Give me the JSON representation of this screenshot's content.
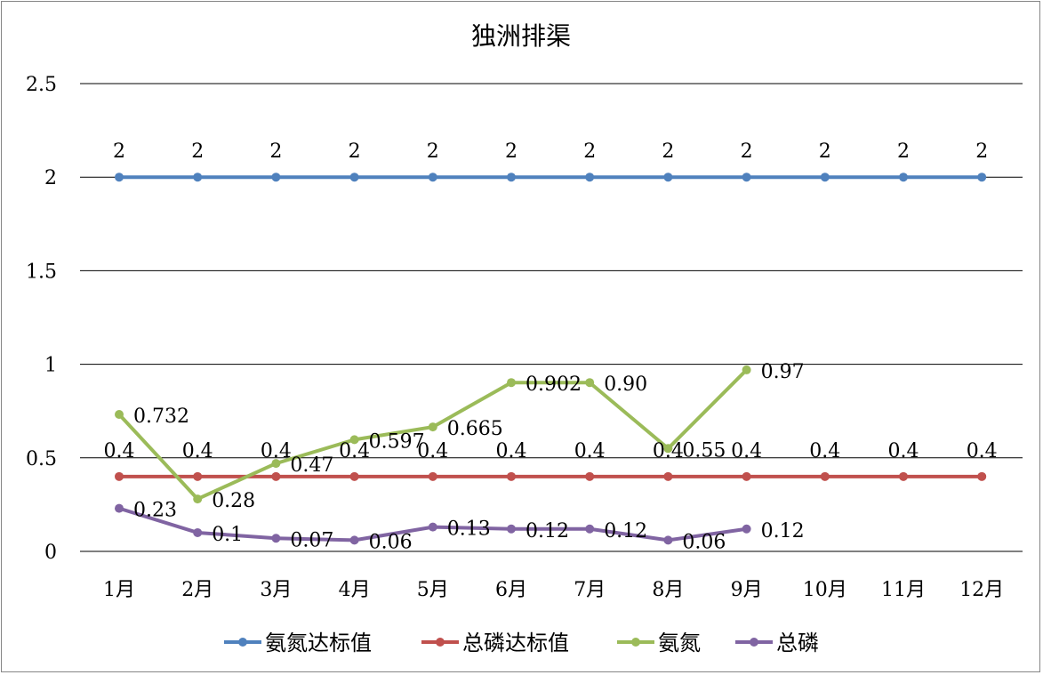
{
  "chart_data": {
    "type": "line",
    "title": "独洲排渠",
    "xlabel": "",
    "ylabel": "",
    "categories": [
      "1月",
      "2月",
      "3月",
      "4月",
      "5月",
      "6月",
      "7月",
      "8月",
      "9月",
      "10月",
      "11月",
      "12月"
    ],
    "ylim": [
      0,
      2.5
    ],
    "yticks": [
      0,
      0.5,
      1,
      1.5,
      2,
      2.5
    ],
    "ytick_labels": [
      "0",
      "0.5",
      "1",
      "1.5",
      "2",
      "2.5"
    ],
    "grid": true,
    "legend_position": "bottom",
    "series": [
      {
        "name": "氨氮达标值",
        "color": "#4F81BD",
        "values": [
          2,
          2,
          2,
          2,
          2,
          2,
          2,
          2,
          2,
          2,
          2,
          2
        ],
        "labels": [
          "2",
          "2",
          "2",
          "2",
          "2",
          "2",
          "2",
          "2",
          "2",
          "2",
          "2",
          "2"
        ],
        "label_position": "above"
      },
      {
        "name": "总磷达标值",
        "color": "#C0504D",
        "values": [
          0.4,
          0.4,
          0.4,
          0.4,
          0.4,
          0.4,
          0.4,
          0.4,
          0.4,
          0.4,
          0.4,
          0.4
        ],
        "labels": [
          "0.4",
          "0.4",
          "0.4",
          "0.4",
          "0.4",
          "0.4",
          "0.4",
          "0.4",
          "0.4",
          "0.4",
          "0.4",
          "0.4"
        ],
        "label_position": "above"
      },
      {
        "name": "氨氮",
        "color": "#9BBB59",
        "values": [
          0.732,
          0.28,
          0.47,
          0.597,
          0.665,
          0.902,
          0.902,
          0.55,
          0.97,
          null,
          null,
          null
        ],
        "labels": [
          "0.732",
          "0.28",
          "0.47",
          "0.597",
          "0.665",
          "0.902",
          "0.90",
          "0.55",
          "0.97",
          null,
          null,
          null
        ],
        "label_position": "right"
      },
      {
        "name": "总磷",
        "color": "#8064A2",
        "values": [
          0.23,
          0.1,
          0.07,
          0.06,
          0.13,
          0.12,
          0.12,
          0.06,
          0.12,
          null,
          null,
          null
        ],
        "labels": [
          "0.23",
          "0.1",
          "0.07",
          "0.06",
          "0.13",
          "0.12",
          "0.12",
          "0.06",
          "0.12",
          null,
          null,
          null
        ],
        "label_position": "right"
      }
    ]
  }
}
